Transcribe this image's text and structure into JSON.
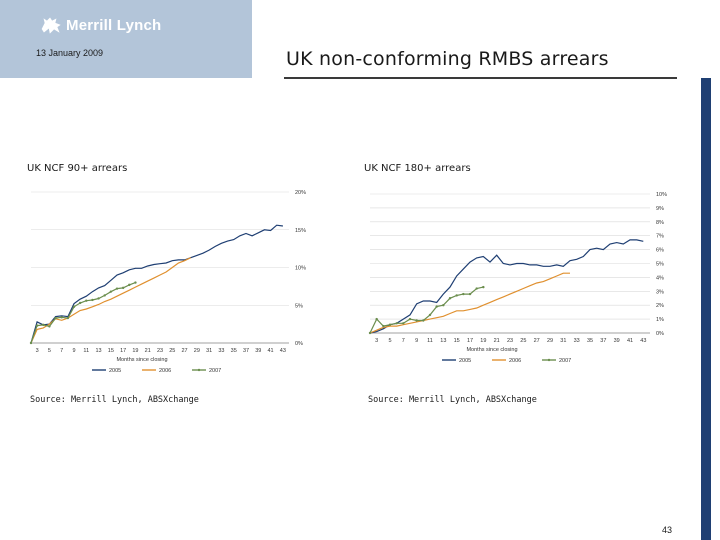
{
  "header": {
    "brand": "Merrill Lynch",
    "date": "13 January 2009",
    "title": "UK non-conforming RMBS arrears",
    "colors": {
      "box": "#b3c5d9",
      "brand_bar": "#1f3f73"
    }
  },
  "logo_icon": "bull-icon",
  "page_number": "43",
  "chart_data": [
    {
      "type": "line",
      "title": "UK NCF 90+ arrears",
      "source": "Source: Merrill Lynch, ABSXchange",
      "xlabel": "Months since closing",
      "ylabel": "",
      "x_ticks": [
        "3",
        "5",
        "7",
        "9",
        "11",
        "13",
        "15",
        "17",
        "19",
        "21",
        "23",
        "25",
        "27",
        "29",
        "31",
        "33",
        "35",
        "37",
        "39",
        "41",
        "43"
      ],
      "y_ticks": [
        "0%",
        "5%",
        "10%",
        "15%",
        "20%"
      ],
      "ylim": [
        0,
        20
      ],
      "xlim": [
        2,
        44
      ],
      "y_axis_side": "right",
      "grid": true,
      "legend": "bottom",
      "series": [
        {
          "name": "2005",
          "color": "#1f3f73",
          "marker": "none",
          "x": [
            2,
            3,
            4,
            5,
            6,
            7,
            8,
            9,
            10,
            11,
            12,
            13,
            14,
            15,
            16,
            17,
            18,
            19,
            20,
            21,
            22,
            23,
            24,
            25,
            26,
            27,
            28,
            29,
            30,
            31,
            32,
            33,
            34,
            35,
            36,
            37,
            38,
            39,
            40,
            41,
            42,
            43
          ],
          "y": [
            0,
            2.8,
            2.4,
            2.5,
            3.5,
            3.6,
            3.5,
            5.2,
            5.8,
            6.2,
            6.8,
            7.3,
            7.6,
            8.3,
            9.0,
            9.3,
            9.7,
            9.9,
            9.9,
            10.2,
            10.4,
            10.5,
            10.6,
            10.9,
            11.0,
            11.0,
            11.3,
            11.6,
            11.9,
            12.3,
            12.8,
            13.2,
            13.5,
            13.7,
            14.2,
            14.5,
            14.2,
            14.6,
            15.0,
            14.9,
            15.6,
            15.5
          ]
        },
        {
          "name": "2006",
          "color": "#e0902f",
          "marker": "none",
          "x": [
            2,
            3,
            4,
            5,
            6,
            7,
            8,
            9,
            10,
            11,
            12,
            13,
            14,
            15,
            16,
            17,
            18,
            19,
            20,
            21,
            22,
            23,
            24,
            25,
            26,
            27,
            28
          ],
          "y": [
            0,
            1.8,
            2.0,
            2.5,
            3.2,
            3.0,
            3.3,
            3.8,
            4.3,
            4.5,
            4.8,
            5.1,
            5.5,
            5.8,
            6.2,
            6.6,
            7.0,
            7.4,
            7.8,
            8.2,
            8.6,
            9.0,
            9.4,
            10.0,
            10.6,
            10.9,
            11.3
          ]
        },
        {
          "name": "2007",
          "color": "#6b8e4e",
          "marker": "dot",
          "x": [
            2,
            3,
            4,
            5,
            6,
            7,
            8,
            9,
            10,
            11,
            12,
            13,
            14,
            15,
            16,
            17,
            18,
            19
          ],
          "y": [
            0,
            2.3,
            2.4,
            2.2,
            3.3,
            3.4,
            3.3,
            4.8,
            5.3,
            5.6,
            5.7,
            5.9,
            6.3,
            6.8,
            7.2,
            7.3,
            7.7,
            8.0
          ]
        }
      ]
    },
    {
      "type": "line",
      "title": "UK NCF 180+ arrears",
      "source": "Source: Merrill Lynch, ABSXchange",
      "xlabel": "Months since closing",
      "ylabel": "",
      "x_ticks": [
        "3",
        "5",
        "7",
        "9",
        "11",
        "13",
        "15",
        "17",
        "19",
        "21",
        "23",
        "25",
        "27",
        "29",
        "31",
        "33",
        "35",
        "37",
        "39",
        "41",
        "43"
      ],
      "y_ticks": [
        "0%",
        "1%",
        "2%",
        "3%",
        "4%",
        "5%",
        "6%",
        "7%",
        "8%",
        "9%",
        "10%"
      ],
      "ylim": [
        0,
        10
      ],
      "xlim": [
        2,
        44
      ],
      "y_axis_side": "right",
      "grid": true,
      "legend": "bottom",
      "series": [
        {
          "name": "2005",
          "color": "#1f3f73",
          "marker": "none",
          "x": [
            2,
            3,
            4,
            5,
            6,
            7,
            8,
            9,
            10,
            11,
            12,
            13,
            14,
            15,
            16,
            17,
            18,
            19,
            20,
            21,
            22,
            23,
            24,
            25,
            26,
            27,
            28,
            29,
            30,
            31,
            32,
            33,
            34,
            35,
            36,
            37,
            38,
            39,
            40,
            41,
            42,
            43
          ],
          "y": [
            0,
            0.1,
            0.3,
            0.6,
            0.7,
            1.0,
            1.3,
            2.1,
            2.3,
            2.3,
            2.2,
            2.8,
            3.3,
            4.1,
            4.6,
            5.1,
            5.4,
            5.5,
            5.1,
            5.6,
            5.0,
            4.9,
            5.0,
            5.0,
            4.9,
            4.9,
            4.8,
            4.8,
            4.9,
            4.8,
            5.2,
            5.3,
            5.5,
            6.0,
            6.1,
            6.0,
            6.4,
            6.5,
            6.4,
            6.7,
            6.7,
            6.6
          ]
        },
        {
          "name": "2006",
          "color": "#e0902f",
          "marker": "none",
          "x": [
            2,
            3,
            4,
            5,
            6,
            7,
            8,
            9,
            10,
            11,
            12,
            13,
            14,
            15,
            16,
            17,
            18,
            19,
            20,
            21,
            22,
            23,
            24,
            25,
            26,
            27,
            28,
            29,
            30,
            31,
            32
          ],
          "y": [
            0,
            0.2,
            0.4,
            0.5,
            0.5,
            0.6,
            0.7,
            0.8,
            0.9,
            1.0,
            1.1,
            1.2,
            1.4,
            1.6,
            1.6,
            1.7,
            1.8,
            2.0,
            2.2,
            2.4,
            2.6,
            2.8,
            3.0,
            3.2,
            3.4,
            3.6,
            3.7,
            3.9,
            4.1,
            4.3,
            4.3
          ]
        },
        {
          "name": "2007",
          "color": "#6b8e4e",
          "marker": "dot",
          "x": [
            2,
            3,
            4,
            5,
            6,
            7,
            8,
            9,
            10,
            11,
            12,
            13,
            14,
            15,
            16,
            17,
            18,
            19
          ],
          "y": [
            0,
            1.0,
            0.5,
            0.6,
            0.7,
            0.7,
            1.0,
            0.9,
            0.9,
            1.3,
            1.9,
            2.0,
            2.5,
            2.7,
            2.8,
            2.8,
            3.2,
            3.3
          ]
        }
      ]
    }
  ]
}
